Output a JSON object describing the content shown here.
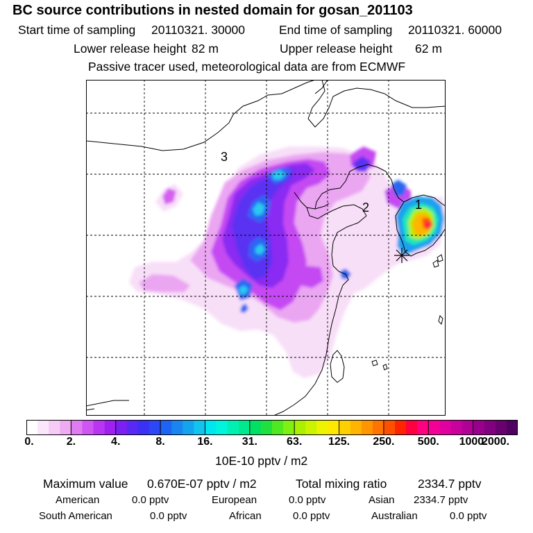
{
  "header": {
    "title": "BC  source contributions in nested domain for gosan_201103",
    "start_label": "Start time of sampling",
    "start_value": "20110321. 30000",
    "end_label": "End time of sampling",
    "end_value": "20110321. 60000",
    "lower_label": "Lower release height",
    "lower_value": "82 m",
    "upper_label": "Upper release height",
    "upper_value": "62 m",
    "note": "Passive tracer used, meteorological data are from ECMWF"
  },
  "map": {
    "labels": [
      "3",
      "2",
      "1"
    ],
    "receptor_marker": "star-icon",
    "plume_colors": [
      "#f6d9f7",
      "#ee9cf3",
      "#d55cf0",
      "#9a2cf2",
      "#6b2cf0",
      "#3c46f6",
      "#2a8bf0",
      "#29c8f0"
    ]
  },
  "colorbar": {
    "unit": "10E-10 pptv / m2",
    "ticks": [
      "0.",
      "2.",
      "4.",
      "8.",
      "16.",
      "31.",
      "63.",
      "125.",
      "250.",
      "500.",
      "1000.",
      "2000."
    ],
    "colors": [
      "#ffffff",
      "#fbe6fb",
      "#f6ccf6",
      "#eeaaf2",
      "#e07cf2",
      "#cf56f2",
      "#b836f2",
      "#a020f0",
      "#7a20f2",
      "#5a28f4",
      "#3a30f6",
      "#2a48f6",
      "#1e64f4",
      "#1a84f0",
      "#14a4ee",
      "#10c4ee",
      "#00e6f0",
      "#00f6dc",
      "#00f0b4",
      "#00e890",
      "#00e064",
      "#20e040",
      "#50e820",
      "#80f010",
      "#aaf000",
      "#ccf400",
      "#eef400",
      "#ffe800",
      "#ffd000",
      "#ffb400",
      "#ff9600",
      "#ff7400",
      "#ff5000",
      "#ff2400",
      "#ff0040",
      "#ff0080",
      "#f40094",
      "#e000a0",
      "#c8009c",
      "#b00096",
      "#98008c",
      "#800080",
      "#680070",
      "#500060"
    ]
  },
  "stats": {
    "max_label": "Maximum value",
    "max_value": "0.670E-07 pptv / m2",
    "total_label": "Total mixing ratio",
    "total_value": "2334.7 pptv",
    "american_label": "American",
    "american_value": "0.0 pptv",
    "european_label": "European",
    "european_value": "0.0 pptv",
    "asian_label": "Asian",
    "asian_value": "2334.7 pptv",
    "south_american_label": "South American",
    "south_american_value": "0.0 pptv",
    "african_label": "African",
    "african_value": "0.0 pptv",
    "australian_label": "Australian",
    "australian_value": "0.0 pptv"
  }
}
